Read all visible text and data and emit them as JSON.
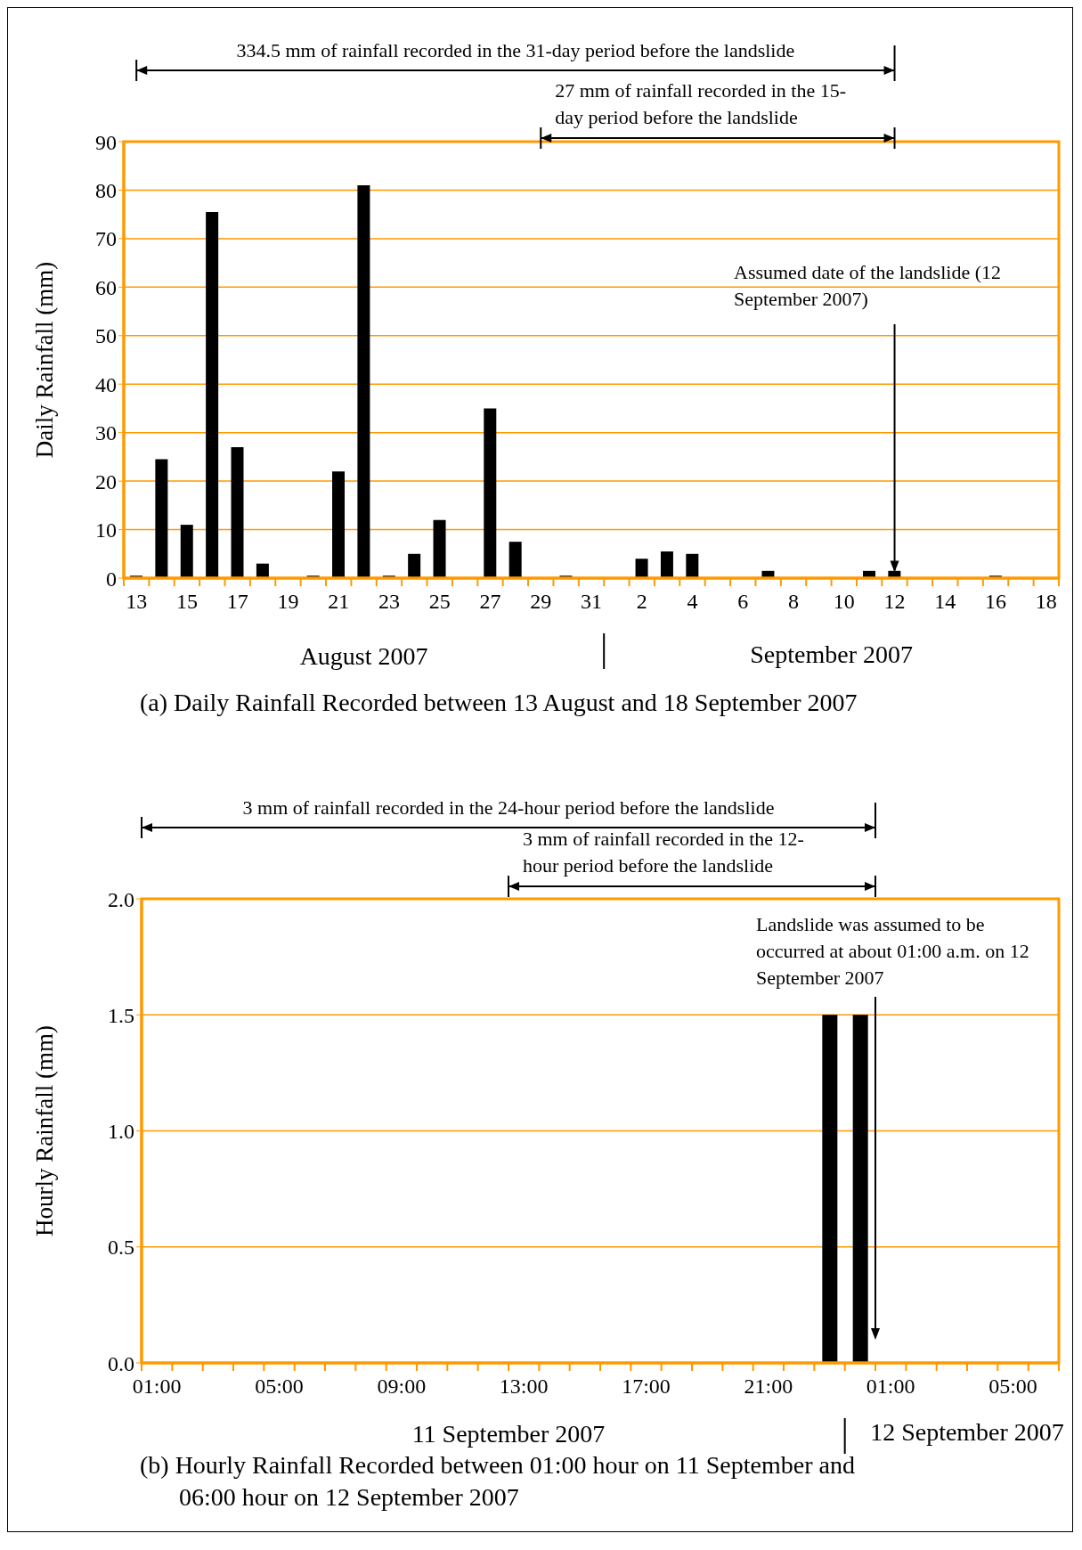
{
  "chart_data": [
    {
      "type": "bar",
      "title": "(a) Daily Rainfall Recorded between 13 August and 18 September 2007",
      "ylabel": "Daily Rainfall (mm)",
      "categories": [
        "13",
        null,
        "15",
        null,
        "17",
        null,
        "19",
        null,
        "21",
        null,
        "23",
        null,
        "25",
        null,
        "27",
        null,
        "29",
        null,
        "31",
        null,
        "2",
        null,
        "4",
        null,
        "6",
        null,
        "8",
        null,
        "10",
        null,
        "12",
        null,
        "14",
        null,
        "16",
        null,
        "18"
      ],
      "values": [
        0.5,
        24.5,
        11,
        75.5,
        27,
        3,
        0,
        0.5,
        22,
        81,
        0.5,
        5,
        12,
        0,
        35,
        7.5,
        0,
        0.5,
        0,
        0,
        4,
        5.5,
        5,
        0,
        0,
        1.5,
        0,
        0,
        0,
        1.5,
        1.5,
        0,
        0,
        0,
        0.5,
        0,
        0
      ],
      "color": "#000000",
      "ylim": [
        0,
        90
      ],
      "yticks": [
        0,
        10,
        20,
        30,
        40,
        50,
        60,
        70,
        80,
        90
      ],
      "grid": "y",
      "annotations": [
        "334.5 mm of rainfall recorded in the 31-day period before the landslide",
        "27 mm of rainfall recorded in the 15-day period before the landslide",
        "Assumed date of the landslide (12 September 2007)",
        "August 2007",
        "September 2007"
      ]
    },
    {
      "type": "bar",
      "title": "(b) Hourly Rainfall Recorded between 01:00 hour on 11 September and 06:00 hour on 12 September 2007",
      "ylabel": "Hourly Rainfall (mm)",
      "categories": [
        "01:00",
        null,
        null,
        null,
        "05:00",
        null,
        null,
        null,
        "09:00",
        null,
        null,
        null,
        "13:00",
        null,
        null,
        null,
        "17:00",
        null,
        null,
        null,
        "21:00",
        null,
        null,
        null,
        "01:00",
        null,
        null,
        null,
        "05:00",
        null
      ],
      "values": [
        0,
        0,
        0,
        0,
        0,
        0,
        0,
        0,
        0,
        0,
        0,
        0,
        0,
        0,
        0,
        0,
        0,
        0,
        0,
        0,
        0,
        0,
        1.5,
        1.5,
        0,
        0,
        0,
        0,
        0,
        0
      ],
      "color": "#000000",
      "ylim": [
        0,
        2
      ],
      "yticks": [
        {
          "value": 0,
          "label": "0.0"
        },
        {
          "value": 0.5,
          "label": "0.5"
        },
        {
          "value": 1,
          "label": "1.0"
        },
        {
          "value": 1.5,
          "label": "1.5"
        },
        {
          "value": 2,
          "label": "2.0"
        }
      ],
      "grid": "y",
      "annotations": [
        "3 mm of rainfall recorded in the 24-hour period before the landslide",
        "3 mm of rainfall recorded in the 12-hour period before the landslide",
        "Landslide was assumed to be occurred at about 01:00 a.m. on 12 September 2007",
        "11 September 2007",
        "12 September 2007"
      ]
    }
  ]
}
